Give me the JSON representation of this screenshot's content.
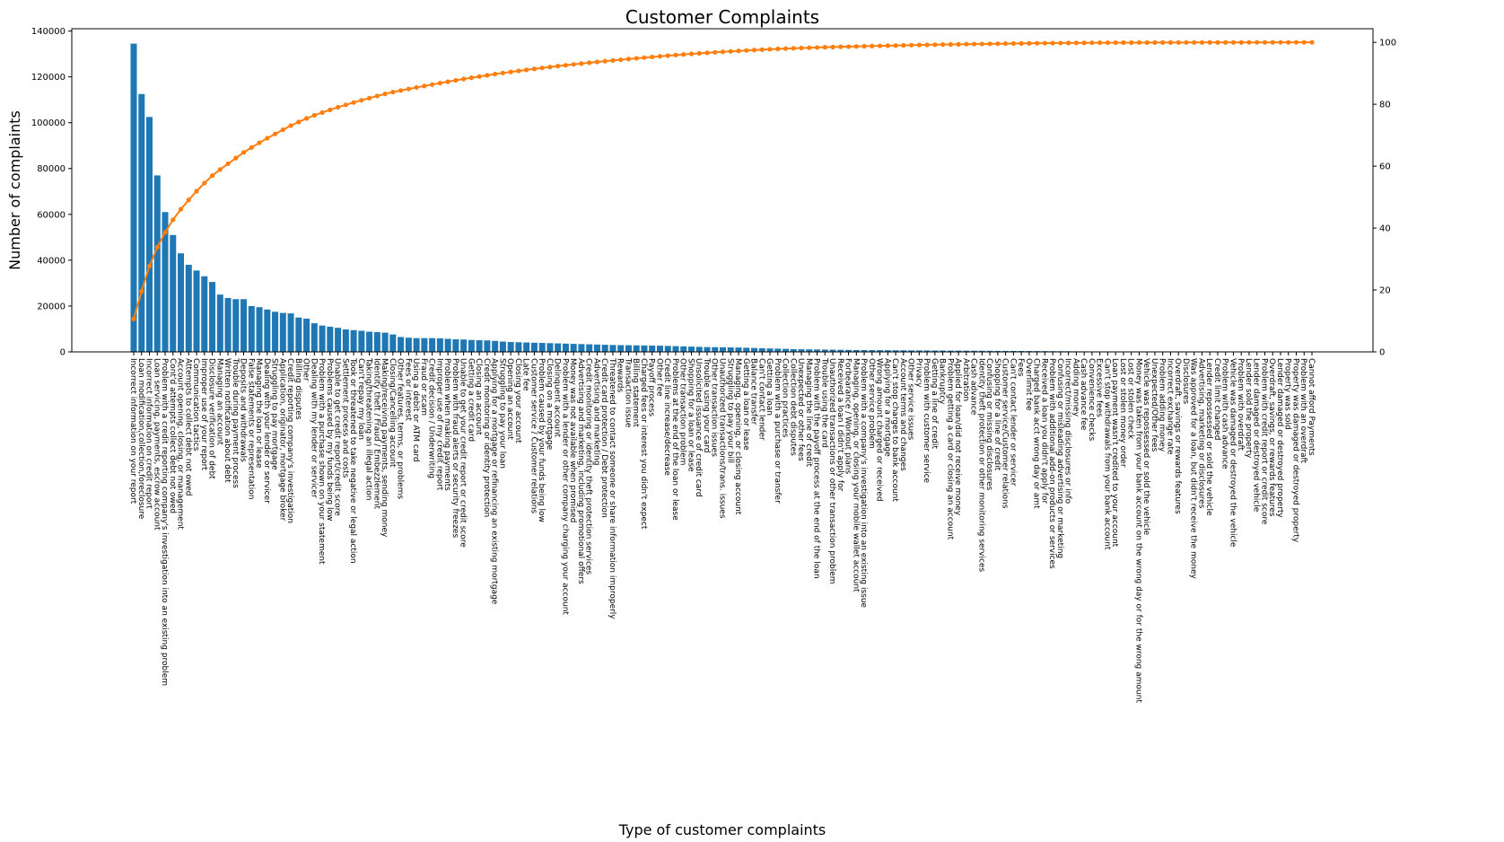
{
  "chart_data": {
    "type": "pareto",
    "title": "Customer Complaints",
    "x_label": "Type of customer complaints",
    "y_label": "Number of complaints",
    "bar_color": "#1f77b4",
    "line_color": "#ff7f0e",
    "ylim": [
      0,
      141000
    ],
    "yticks": [
      0,
      20000,
      40000,
      60000,
      80000,
      100000,
      120000,
      140000
    ],
    "y2lim": [
      0,
      104.4
    ],
    "y2ticks": [
      0,
      20,
      40,
      60,
      80,
      100
    ],
    "categories": [
      "Incorrect information on your report",
      "Loan modification,collection,foreclosure",
      "Incorrect information on credit report",
      "Loan servicing, payments, escrow account",
      "Problem with a credit reporting company's investigation into an existing problem",
      "Cont'd attempts collect debt not owed",
      "Account opening, closing, or management",
      "Attempts to collect debt not owed",
      "Communication tactics",
      "Improper use of your report",
      "Disclosure verification of debt",
      "Managing an account",
      "Written notification about debt",
      "Trouble during payment process",
      "Deposits and withdrawals",
      "False statements or representation",
      "Managing the loan or lease",
      "Dealing with your lender or servicer",
      "Struggling to pay mortgage",
      "Application, originator, mortgage broker",
      "Credit reporting company's investigation",
      "Billing disputes",
      "Other",
      "Dealing with my lender or servicer",
      "Problem with a purchase shown on your statement",
      "Problems caused by my funds being low",
      "Unable to get credit report/credit score",
      "Settlement process and costs",
      "Took or threatened to take negative or legal action",
      "Can't repay my loan",
      "Taking/threatening an illegal action",
      "Identity theft / Fraud / Embezzlement",
      "Making/receiving payments, sending money",
      "Closing/Cancelling account",
      "Other features, terms, or problems",
      "Fees or interest",
      "Using a debit or ATM card",
      "Fraud or scam",
      "Credit decision / Underwriting",
      "Improper use of my credit report",
      "Problem when making payments",
      "Problem with fraud alerts or security freezes",
      "Unable to get your credit report or credit score",
      "Getting a credit card",
      "Closing an account",
      "Credit monitoring or identity protection",
      "Applying for a mortgage or refinancing an existing mortgage",
      "Struggling to pay your loan",
      "Opening an account",
      "Closing your account",
      "Late fee",
      "Customer service / Customer relations",
      "Problem caused by your funds being low",
      "Closing on a mortgage",
      "Delinquent account",
      "Problem with a lender or other company charging your account",
      "Money was not available when promised",
      "Advertising and marketing, including promotional offers",
      "Credit monitoring or identity theft protection services",
      "Advertising and marketing",
      "Credit card protection / Debt protection",
      "Threatened to contact someone or share information improperly",
      "Rewards",
      "Transaction issue",
      "Billing statement",
      "Charged fees or interest you didn't expect",
      "Payoff process",
      "Other fee",
      "Credit line increase/decrease",
      "Problems at the end of the loan or lease",
      "Other transaction problem",
      "Shopping for a loan or lease",
      "Unsolicited issuance of credit card",
      "Trouble using your card",
      "Other transaction issues",
      "Unauthorized transactions/trans. issues",
      "Struggling to pay your bill",
      "Managing, opening, or closing account",
      "Getting a loan or lease",
      "Balance transfer",
      "Can't contact lender",
      "Getting a loan",
      "Problem with a purchase or transfer",
      "Collection practices",
      "Collection debt disputes",
      "Unexpected or other fees",
      "Managing the line of credit",
      "Problem with the payoff process at the end of the loan",
      "Trouble using the card",
      "Unauthorized transactions or other transaction problem",
      "Received a loan I didn't apply for",
      "Forbearance / Workout plans",
      "Managing, opening, or closing your mobile wallet account",
      "Problem with a company's investigation into an existing issue",
      "Other service problem",
      "Wrong amount charged or received",
      "Applying for a mortgage",
      "Can't stop charges to bank account",
      "Account terms and changes",
      "Other service issues",
      "Privacy",
      "Problem with customer service",
      "Getting a line of credit",
      "Bankruptcy",
      "Problem getting a card or closing an account",
      "Applied for loan/did not receive money",
      "Arbitration",
      "Cash advance",
      "Identity theft protection or other monitoring services",
      "Confusing or missing disclosures",
      "Shopping for a line of credit",
      "Customer service/Customer relations",
      "Can't contact lender or servicer",
      "Fees",
      "Overlimit fee",
      "Charged bank acct wrong day or amt",
      "Received a loan you didn't apply for",
      "Problem with additional add-on products or services",
      "Confusing or misleading advertising or marketing",
      "Incorrect/missing disclosures or info",
      "Adding money",
      "Cash advance fee",
      "Convenience checks",
      "Excessive fees",
      "Can't stop withdrawals from your bank account",
      "Loan payment wasn't credited to your account",
      "Lost or stolen money order",
      "Lost or stolen check",
      "Money was taken from your bank account on the wrong day or for the wrong amount",
      "Vehicle was repossessed or sold the vehicle",
      "Unexpected/Other fees",
      "Problem adding money",
      "Incorrect exchange rate",
      "Overdraft, savings or rewards features",
      "Disclosures",
      "Was approved for a loan, but didn't receive the money",
      "Advertising, marketing or disclosures",
      "Lender repossessed or sold the vehicle",
      "Credit limit changed",
      "Problem with cash advance",
      "Vehicle was damaged or destroyed the vehicle",
      "Problem with overdraft",
      "Lender sold the property",
      "Lender damaged or destroyed vehicle",
      "Problem with credit report or credit score",
      "Overdraft, savings, or rewards features",
      "Lender damaged or destroyed property",
      "Property was sold",
      "Property was damaged or destroyed property",
      "Problem with an overdraft",
      "Cannot afford Payments"
    ],
    "values": [
      134500,
      112500,
      102500,
      77000,
      61000,
      51000,
      43000,
      38000,
      35500,
      33000,
      30500,
      25000,
      23500,
      23000,
      23000,
      20000,
      19500,
      18500,
      17500,
      17000,
      16800,
      15000,
      14500,
      12500,
      11500,
      11000,
      10500,
      9800,
      9500,
      9200,
      8800,
      8600,
      8400,
      7600,
      6500,
      6200,
      6000,
      6000,
      6000,
      5900,
      5700,
      5500,
      5400,
      5200,
      5100,
      5000,
      4800,
      4500,
      4300,
      4200,
      4100,
      4000,
      3900,
      3800,
      3700,
      3600,
      3500,
      3400,
      3300,
      3200,
      3100,
      3000,
      2950,
      2900,
      2850,
      2800,
      2750,
      2700,
      2600,
      2500,
      2400,
      2300,
      2200,
      2100,
      2050,
      2000,
      1950,
      1900,
      1800,
      1700,
      1600,
      1500,
      1400,
      1300,
      1200,
      1150,
      1100,
      1050,
      1000,
      950,
      900,
      850,
      800,
      780,
      760,
      740,
      720,
      700,
      680,
      660,
      640,
      620,
      600,
      580,
      560,
      540,
      520,
      500,
      480,
      460,
      440,
      420,
      400,
      380,
      360,
      340,
      320,
      300,
      280,
      260,
      240,
      220,
      200,
      180,
      160,
      150,
      120,
      110,
      100,
      95,
      90,
      85,
      80,
      75,
      70,
      65,
      60,
      55,
      50,
      45,
      40,
      35,
      30,
      28,
      26,
      24,
      22,
      20,
      18,
      15,
      12
    ]
  }
}
